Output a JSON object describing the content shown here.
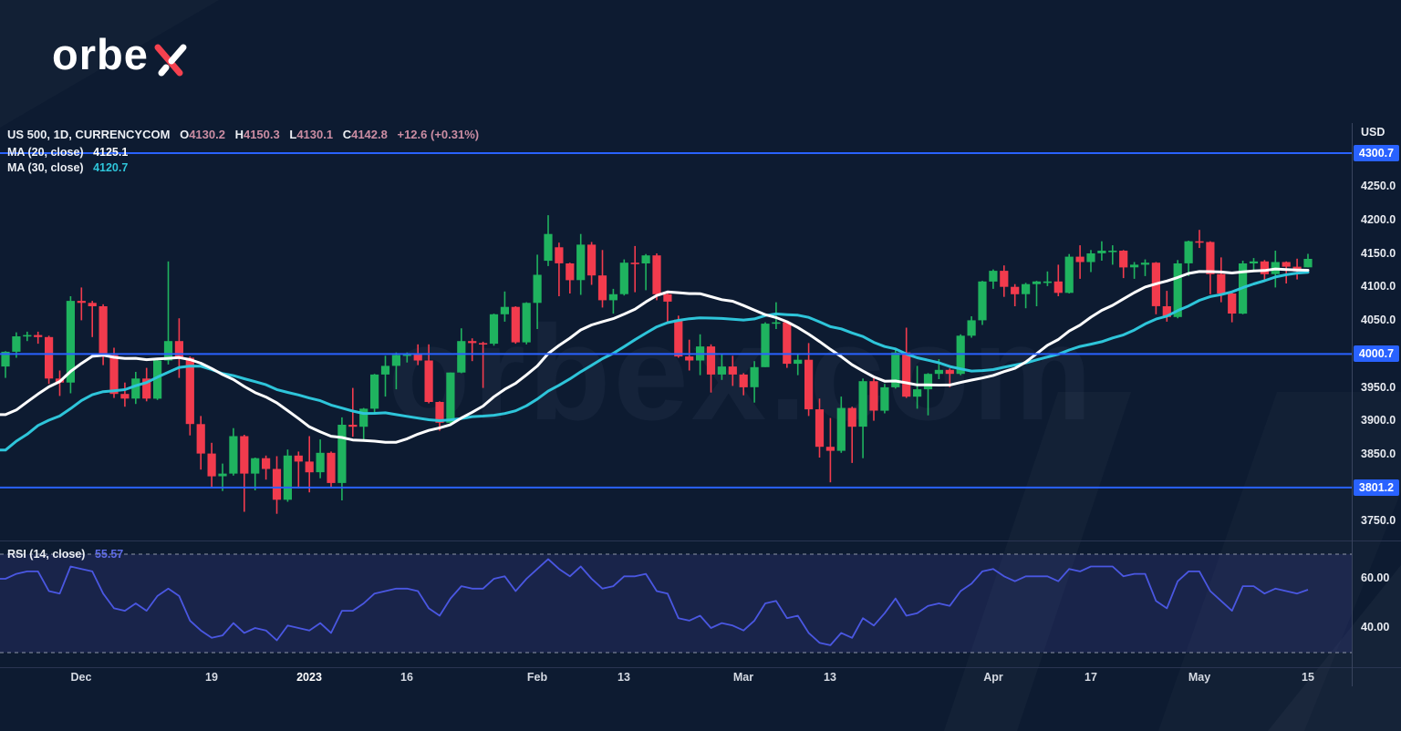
{
  "brand": {
    "name": "orbex",
    "logo_left": "orbe"
  },
  "legend": {
    "title": "US 500, 1D, CURRENCYCOM",
    "o_key": "O",
    "o": "4130.2",
    "h_key": "H",
    "h": "4150.3",
    "l_key": "L",
    "l": "4130.1",
    "c_key": "C",
    "c": "4142.8",
    "change": "+12.6 (+0.31%)"
  },
  "ma20_legend": {
    "label": "MA (20, close)",
    "value": "4125.1"
  },
  "ma30_legend": {
    "label": "MA (30, close)",
    "value": "4120.7"
  },
  "rsi_legend": {
    "label": "RSI (14, close)",
    "value": "55.57"
  },
  "price_axis": {
    "currency": "USD",
    "ticks": [
      "4250.0",
      "4200.0",
      "4150.0",
      "4100.0",
      "4050.0",
      "3950.0",
      "3900.0",
      "3850.0",
      "3750.0"
    ],
    "tick_values": [
      4250,
      4200,
      4150,
      4100,
      4050,
      3950,
      3900,
      3850,
      3750
    ],
    "badges": [
      "4300.7",
      "4000.7",
      "3801.2"
    ]
  },
  "time_axis": {
    "labels": [
      {
        "text": "Dec",
        "i": 7,
        "year": false
      },
      {
        "text": "19",
        "i": 19,
        "year": false
      },
      {
        "text": "2023",
        "i": 28,
        "year": true
      },
      {
        "text": "16",
        "i": 37,
        "year": false
      },
      {
        "text": "Feb",
        "i": 49,
        "year": false
      },
      {
        "text": "13",
        "i": 57,
        "year": false
      },
      {
        "text": "Mar",
        "i": 68,
        "year": false
      },
      {
        "text": "13",
        "i": 76,
        "year": false
      },
      {
        "text": "Apr",
        "i": 91,
        "year": false
      },
      {
        "text": "17",
        "i": 100,
        "year": false
      },
      {
        "text": "May",
        "i": 110,
        "year": false
      },
      {
        "text": "15",
        "i": 120,
        "year": false
      }
    ]
  },
  "colors": {
    "up": "#1fb35f",
    "down": "#f23b4d",
    "ma20": "#ffffff",
    "ma30": "#2ec5da",
    "accent": "#2962ff",
    "rsi": "#4a57e2",
    "rsi_band": "#3c3f8f",
    "dashed": "#b9bdc9",
    "separator": "#2a3552",
    "logo_red": "#f5414f",
    "background": "#0d1b31"
  },
  "chart_data": {
    "type": "candlestick",
    "title": "US 500, 1D, CURRENCYCOM",
    "symbol": "US 500",
    "interval": "1D",
    "exchange": "CURRENCYCOM",
    "currency": "USD",
    "watermark": "orbex.com",
    "ylim_price": [
      3722,
      4345
    ],
    "horizontal_levels": [
      4300.7,
      4000.7,
      3801.2
    ],
    "overlays": [
      {
        "name": "MA (20, close)",
        "period": 20,
        "last": 4125.1
      },
      {
        "name": "MA (30, close)",
        "period": 30,
        "last": 4120.7
      }
    ],
    "pre_closes": [
      3639,
      3627,
      3720,
      3633,
      3728,
      3770,
      3746,
      3715,
      3815,
      3858,
      3901,
      3886,
      3789,
      3790,
      3749,
      3801,
      3778,
      3837,
      3859,
      3968,
      4003,
      3967,
      3959,
      3977,
      3968,
      4002,
      3973,
      3956,
      3960,
      3975
    ],
    "candles": [
      [
        "2022-11-22",
        3982,
        4005,
        3965,
        4004
      ],
      [
        "2022-11-23",
        4004,
        4033,
        3995,
        4027
      ],
      [
        "2022-11-24",
        4027,
        4034,
        4020,
        4029
      ],
      [
        "2022-11-25",
        4029,
        4034,
        4016,
        4026
      ],
      [
        "2022-11-28",
        4026,
        4028,
        3956,
        3964
      ],
      [
        "2022-11-29",
        3964,
        3976,
        3938,
        3958
      ],
      [
        "2022-11-30",
        3958,
        4087,
        3942,
        4080
      ],
      [
        "2022-12-01",
        4080,
        4100,
        4051,
        4077
      ],
      [
        "2022-12-02",
        4077,
        4080,
        4026,
        4072
      ],
      [
        "2022-12-05",
        4072,
        4075,
        3984,
        3999
      ],
      [
        "2022-12-06",
        3999,
        4010,
        3935,
        3941
      ],
      [
        "2022-12-07",
        3941,
        3958,
        3922,
        3934
      ],
      [
        "2022-12-08",
        3934,
        3974,
        3926,
        3964
      ],
      [
        "2022-12-09",
        3964,
        3980,
        3930,
        3934
      ],
      [
        "2022-12-12",
        3934,
        3992,
        3932,
        3991
      ],
      [
        "2022-12-13",
        3991,
        4139,
        3985,
        4020
      ],
      [
        "2022-12-14",
        4020,
        4054,
        3965,
        3995
      ],
      [
        "2022-12-15",
        3995,
        3997,
        3879,
        3896
      ],
      [
        "2022-12-16",
        3896,
        3908,
        3828,
        3852
      ],
      [
        "2022-12-19",
        3852,
        3868,
        3801,
        3818
      ],
      [
        "2022-12-20",
        3818,
        3837,
        3796,
        3822
      ],
      [
        "2022-12-21",
        3822,
        3890,
        3819,
        3878
      ],
      [
        "2022-12-22",
        3878,
        3880,
        3765,
        3822
      ],
      [
        "2022-12-23",
        3822,
        3846,
        3797,
        3845
      ],
      [
        "2022-12-27",
        3845,
        3849,
        3813,
        3829
      ],
      [
        "2022-12-28",
        3829,
        3848,
        3762,
        3783
      ],
      [
        "2022-12-29",
        3783,
        3858,
        3780,
        3849
      ],
      [
        "2022-12-30",
        3849,
        3855,
        3800,
        3840
      ],
      [
        "2023-01-03",
        3840,
        3878,
        3794,
        3824
      ],
      [
        "2023-01-04",
        3824,
        3873,
        3815,
        3853
      ],
      [
        "2023-01-05",
        3853,
        3855,
        3802,
        3808
      ],
      [
        "2023-01-06",
        3808,
        3906,
        3782,
        3895
      ],
      [
        "2023-01-09",
        3895,
        3950,
        3877,
        3892
      ],
      [
        "2023-01-10",
        3892,
        3920,
        3871,
        3919
      ],
      [
        "2023-01-11",
        3919,
        3971,
        3913,
        3970
      ],
      [
        "2023-01-12",
        3970,
        3998,
        3937,
        3983
      ],
      [
        "2023-01-13",
        3983,
        4003,
        3948,
        3999
      ],
      [
        "2023-01-16",
        3999,
        4003,
        3988,
        4000
      ],
      [
        "2023-01-17",
        4000,
        4015,
        3984,
        3991
      ],
      [
        "2023-01-18",
        3991,
        4015,
        3927,
        3929
      ],
      [
        "2023-01-19",
        3929,
        3930,
        3886,
        3898
      ],
      [
        "2023-01-20",
        3898,
        3973,
        3897,
        3973
      ],
      [
        "2023-01-23",
        3973,
        4039,
        3972,
        4020
      ],
      [
        "2023-01-24",
        4020,
        4024,
        3990,
        4017
      ],
      [
        "2023-01-25",
        4017,
        4019,
        3950,
        4016
      ],
      [
        "2023-01-26",
        4016,
        4061,
        4013,
        4060
      ],
      [
        "2023-01-27",
        4060,
        4094,
        4049,
        4071
      ],
      [
        "2023-01-30",
        4071,
        4072,
        4016,
        4018
      ],
      [
        "2023-01-31",
        4018,
        4078,
        4015,
        4077
      ],
      [
        "2023-02-01",
        4077,
        4149,
        4038,
        4119
      ],
      [
        "2023-02-02",
        4140,
        4208,
        4132,
        4180
      ],
      [
        "2023-02-03",
        4160,
        4167,
        4087,
        4136
      ],
      [
        "2023-02-06",
        4136,
        4137,
        4091,
        4111
      ],
      [
        "2023-02-07",
        4111,
        4180,
        4089,
        4164
      ],
      [
        "2023-02-08",
        4164,
        4168,
        4104,
        4118
      ],
      [
        "2023-02-09",
        4118,
        4156,
        4070,
        4081
      ],
      [
        "2023-02-10",
        4081,
        4098,
        4061,
        4090
      ],
      [
        "2023-02-13",
        4090,
        4142,
        4088,
        4137
      ],
      [
        "2023-02-14",
        4137,
        4162,
        4093,
        4136
      ],
      [
        "2023-02-15",
        4136,
        4150,
        4096,
        4148
      ],
      [
        "2023-02-16",
        4148,
        4151,
        4081,
        4090
      ],
      [
        "2023-02-17",
        4090,
        4094,
        4048,
        4079
      ],
      [
        "2023-02-21",
        4052,
        4058,
        3995,
        3997
      ],
      [
        "2023-02-22",
        3997,
        4022,
        3976,
        3991
      ],
      [
        "2023-02-23",
        3991,
        4030,
        3969,
        4012
      ],
      [
        "2023-02-24",
        4012,
        4015,
        3943,
        3970
      ],
      [
        "2023-02-27",
        3970,
        4000,
        3962,
        3982
      ],
      [
        "2023-02-28",
        3982,
        3998,
        3953,
        3970
      ],
      [
        "2023-03-01",
        3970,
        3972,
        3939,
        3951
      ],
      [
        "2023-03-02",
        3951,
        3990,
        3928,
        3981
      ],
      [
        "2023-03-03",
        3981,
        4048,
        3981,
        4046
      ],
      [
        "2023-03-06",
        4046,
        4078,
        4038,
        4048
      ],
      [
        "2023-03-07",
        4048,
        4050,
        3980,
        3986
      ],
      [
        "2023-03-08",
        3986,
        4000,
        3969,
        3992
      ],
      [
        "2023-03-09",
        3992,
        4017,
        3908,
        3918
      ],
      [
        "2023-03-10",
        3918,
        3934,
        3846,
        3862
      ],
      [
        "2023-03-13",
        3862,
        3905,
        3809,
        3856
      ],
      [
        "2023-03-14",
        3856,
        3937,
        3853,
        3920
      ],
      [
        "2023-03-15",
        3920,
        3922,
        3838,
        3892
      ],
      [
        "2023-03-16",
        3892,
        3964,
        3845,
        3960
      ],
      [
        "2023-03-17",
        3960,
        3965,
        3901,
        3916
      ],
      [
        "2023-03-20",
        3916,
        3956,
        3912,
        3951
      ],
      [
        "2023-03-21",
        3951,
        4010,
        3949,
        4003
      ],
      [
        "2023-03-22",
        4003,
        4040,
        3935,
        3937
      ],
      [
        "2023-03-23",
        3937,
        3983,
        3919,
        3948
      ],
      [
        "2023-03-24",
        3948,
        3972,
        3909,
        3971
      ],
      [
        "2023-03-27",
        3971,
        3993,
        3963,
        3977
      ],
      [
        "2023-03-28",
        3977,
        3979,
        3951,
        3971
      ],
      [
        "2023-03-29",
        3971,
        4030,
        3969,
        4028
      ],
      [
        "2023-03-30",
        4028,
        4057,
        4025,
        4051
      ],
      [
        "2023-03-31",
        4051,
        4110,
        4044,
        4109
      ],
      [
        "2023-04-03",
        4109,
        4127,
        4098,
        4125
      ],
      [
        "2023-04-04",
        4125,
        4133,
        4086,
        4101
      ],
      [
        "2023-04-05",
        4101,
        4105,
        4072,
        4090
      ],
      [
        "2023-04-06",
        4090,
        4107,
        4069,
        4105
      ],
      [
        "2023-04-10",
        4105,
        4110,
        4072,
        4109
      ],
      [
        "2023-04-11",
        4109,
        4124,
        4102,
        4109
      ],
      [
        "2023-04-12",
        4109,
        4134,
        4087,
        4092
      ],
      [
        "2023-04-13",
        4092,
        4150,
        4091,
        4146
      ],
      [
        "2023-04-14",
        4146,
        4163,
        4113,
        4138
      ],
      [
        "2023-04-17",
        4138,
        4156,
        4123,
        4151
      ],
      [
        "2023-04-18",
        4151,
        4169,
        4140,
        4155
      ],
      [
        "2023-04-19",
        4155,
        4163,
        4134,
        4155
      ],
      [
        "2023-04-20",
        4155,
        4156,
        4114,
        4130
      ],
      [
        "2023-04-21",
        4130,
        4138,
        4113,
        4134
      ],
      [
        "2023-04-24",
        4134,
        4142,
        4117,
        4137
      ],
      [
        "2023-04-25",
        4137,
        4138,
        4060,
        4072
      ],
      [
        "2023-04-26",
        4072,
        4095,
        4049,
        4056
      ],
      [
        "2023-04-27",
        4056,
        4141,
        4054,
        4136
      ],
      [
        "2023-04-28",
        4136,
        4170,
        4117,
        4169
      ],
      [
        "2023-05-01",
        4169,
        4186,
        4159,
        4168
      ],
      [
        "2023-05-02",
        4168,
        4169,
        4090,
        4120
      ],
      [
        "2023-05-03",
        4120,
        4145,
        4078,
        4091
      ],
      [
        "2023-05-04",
        4091,
        4095,
        4048,
        4061
      ],
      [
        "2023-05-05",
        4061,
        4140,
        4060,
        4136
      ],
      [
        "2023-05-08",
        4136,
        4144,
        4124,
        4139
      ],
      [
        "2023-05-09",
        4139,
        4141,
        4110,
        4120
      ],
      [
        "2023-05-10",
        4120,
        4155,
        4100,
        4138
      ],
      [
        "2023-05-11",
        4138,
        4139,
        4106,
        4131
      ],
      [
        "2023-05-12",
        4131,
        4143,
        4112,
        4124
      ],
      [
        "2023-05-15",
        4130.2,
        4150.3,
        4130.1,
        4142.8
      ]
    ],
    "rsi": {
      "period": 14,
      "last": 55.57,
      "levels": [
        70,
        30
      ],
      "axis_labels": [
        "60.00",
        "40.00"
      ],
      "axis_values": [
        60,
        40
      ],
      "values": [
        60,
        62,
        63,
        63,
        55,
        54,
        65,
        64,
        63,
        54,
        48,
        47,
        50,
        47,
        53,
        56,
        53,
        43,
        39,
        36,
        37,
        42,
        38,
        40,
        39,
        35,
        41,
        40,
        39,
        42,
        38,
        47,
        47,
        50,
        54,
        55,
        56,
        56,
        55,
        48,
        45,
        52,
        57,
        56,
        56,
        60,
        61,
        55,
        60,
        64,
        68,
        64,
        61,
        65,
        60,
        56,
        57,
        61,
        61,
        62,
        55,
        54,
        44,
        43,
        45,
        40,
        42,
        41,
        39,
        43,
        50,
        51,
        44,
        45,
        38,
        34,
        33,
        38,
        36,
        44,
        41,
        46,
        52,
        45,
        46,
        49,
        50,
        49,
        55,
        58,
        63,
        64,
        61,
        59,
        61,
        61,
        61,
        59,
        64,
        63,
        65,
        65,
        65,
        61,
        62,
        62,
        51,
        48,
        59,
        63,
        63,
        55,
        51,
        47,
        57,
        57,
        54,
        56,
        55,
        54,
        55.57
      ]
    }
  }
}
